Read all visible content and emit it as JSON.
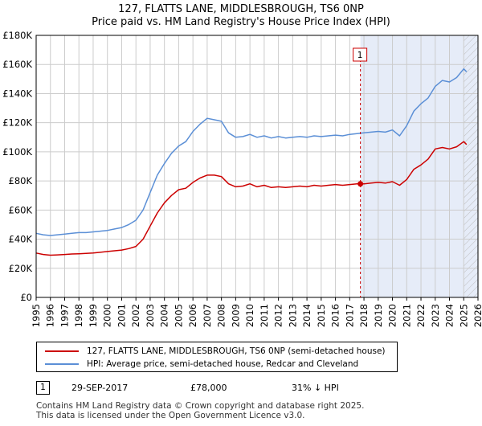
{
  "title_line1": "127, FLATTS LANE, MIDDLESBROUGH, TS6 0NP",
  "title_line2": "Price paid vs. HM Land Registry's House Price Index (HPI)",
  "chart_data": {
    "type": "line",
    "ylim": [
      0,
      180000
    ],
    "xlim": [
      1995,
      2026
    ],
    "y_ticks": [
      0,
      20000,
      40000,
      60000,
      80000,
      100000,
      120000,
      140000,
      160000,
      180000
    ],
    "y_tick_labels": [
      "£0",
      "£20K",
      "£40K",
      "£60K",
      "£80K",
      "£100K",
      "£120K",
      "£140K",
      "£160K",
      "£180K"
    ],
    "x_tick_labels": [
      "1995",
      "1996",
      "1997",
      "1998",
      "1999",
      "2000",
      "2001",
      "2002",
      "2003",
      "2004",
      "2005",
      "2006",
      "2007",
      "2008",
      "2009",
      "2010",
      "2011",
      "2012",
      "2013",
      "2014",
      "2015",
      "2016",
      "2017",
      "2018",
      "2019",
      "2020",
      "2021",
      "2022",
      "2023",
      "2024",
      "2025",
      "2026"
    ],
    "grid": true,
    "highlight_from": 2017.75,
    "hatch_from": 2025.0,
    "series": [
      {
        "name": "127, FLATTS LANE, MIDDLESBROUGH, TS6 0NP (semi-detached house)",
        "color": "#cc0000",
        "x": [
          1995.0,
          1995.5,
          1996.0,
          1996.5,
          1997.0,
          1997.5,
          1998.0,
          1998.5,
          1999.0,
          1999.5,
          2000.0,
          2000.5,
          2001.0,
          2001.5,
          2002.0,
          2002.5,
          2003.0,
          2003.5,
          2004.0,
          2004.5,
          2005.0,
          2005.5,
          2006.0,
          2006.5,
          2007.0,
          2007.5,
          2008.0,
          2008.5,
          2009.0,
          2009.5,
          2010.0,
          2010.5,
          2011.0,
          2011.5,
          2012.0,
          2012.5,
          2013.0,
          2013.5,
          2014.0,
          2014.5,
          2015.0,
          2015.5,
          2016.0,
          2016.5,
          2017.0,
          2017.5,
          2017.75,
          2018.0,
          2018.5,
          2019.0,
          2019.5,
          2020.0,
          2020.5,
          2021.0,
          2021.5,
          2022.0,
          2022.5,
          2023.0,
          2023.5,
          2024.0,
          2024.5,
          2025.0,
          2025.2
        ],
        "values": [
          30500,
          29500,
          29000,
          29200,
          29500,
          29800,
          30000,
          30200,
          30500,
          31000,
          31500,
          32000,
          32500,
          33500,
          35000,
          40000,
          49000,
          58000,
          65000,
          70000,
          74000,
          75000,
          79000,
          82000,
          84000,
          84000,
          83000,
          78000,
          76000,
          76500,
          78000,
          76000,
          77000,
          75500,
          76000,
          75500,
          76000,
          76500,
          76000,
          77000,
          76500,
          77000,
          77500,
          77000,
          77500,
          78000,
          78000,
          78000,
          78500,
          79000,
          78500,
          79500,
          77000,
          81000,
          88000,
          91000,
          95000,
          102000,
          103000,
          102000,
          103500,
          107000,
          105000
        ]
      },
      {
        "name": "HPI: Average price, semi-detached house, Redcar and Cleveland",
        "color": "#5b8fd6",
        "x": [
          1995.0,
          1995.5,
          1996.0,
          1996.5,
          1997.0,
          1997.5,
          1998.0,
          1998.5,
          1999.0,
          1999.5,
          2000.0,
          2000.5,
          2001.0,
          2001.5,
          2002.0,
          2002.5,
          2003.0,
          2003.5,
          2004.0,
          2004.5,
          2005.0,
          2005.5,
          2006.0,
          2006.5,
          2007.0,
          2007.5,
          2008.0,
          2008.5,
          2009.0,
          2009.5,
          2010.0,
          2010.5,
          2011.0,
          2011.5,
          2012.0,
          2012.5,
          2013.0,
          2013.5,
          2014.0,
          2014.5,
          2015.0,
          2015.5,
          2016.0,
          2016.5,
          2017.0,
          2017.5,
          2018.0,
          2018.5,
          2019.0,
          2019.5,
          2020.0,
          2020.5,
          2021.0,
          2021.5,
          2022.0,
          2022.5,
          2023.0,
          2023.5,
          2024.0,
          2024.5,
          2025.0,
          2025.2
        ],
        "values": [
          44000,
          43000,
          42500,
          43000,
          43500,
          44000,
          44500,
          44500,
          45000,
          45500,
          46000,
          47000,
          48000,
          50000,
          53000,
          60000,
          72000,
          84000,
          92000,
          99000,
          104000,
          107000,
          114000,
          119000,
          123000,
          122000,
          121000,
          113000,
          110000,
          110500,
          112000,
          110000,
          111000,
          109500,
          110500,
          109500,
          110000,
          110500,
          110000,
          111000,
          110500,
          111000,
          111500,
          111000,
          112000,
          112500,
          113000,
          113500,
          114000,
          113500,
          115000,
          111000,
          118000,
          128000,
          133000,
          137000,
          145000,
          149000,
          148000,
          151000,
          157000,
          155000
        ]
      }
    ]
  },
  "annotation": {
    "label": "1",
    "x": 2017.75,
    "y": 78000
  },
  "legend": {
    "items": [
      {
        "label": "127, FLATTS LANE, MIDDLESBROUGH, TS6 0NP (semi-detached house)",
        "color": "#cc0000"
      },
      {
        "label": "HPI: Average price, semi-detached house, Redcar and Cleveland",
        "color": "#5b8fd6"
      }
    ]
  },
  "sale": {
    "marker": "1",
    "date": "29-SEP-2017",
    "price": "£78,000",
    "hpi": "31% ↓ HPI"
  },
  "footer": {
    "line1": "Contains HM Land Registry data © Crown copyright and database right 2025.",
    "line2": "This data is licensed under the Open Government Licence v3.0."
  }
}
